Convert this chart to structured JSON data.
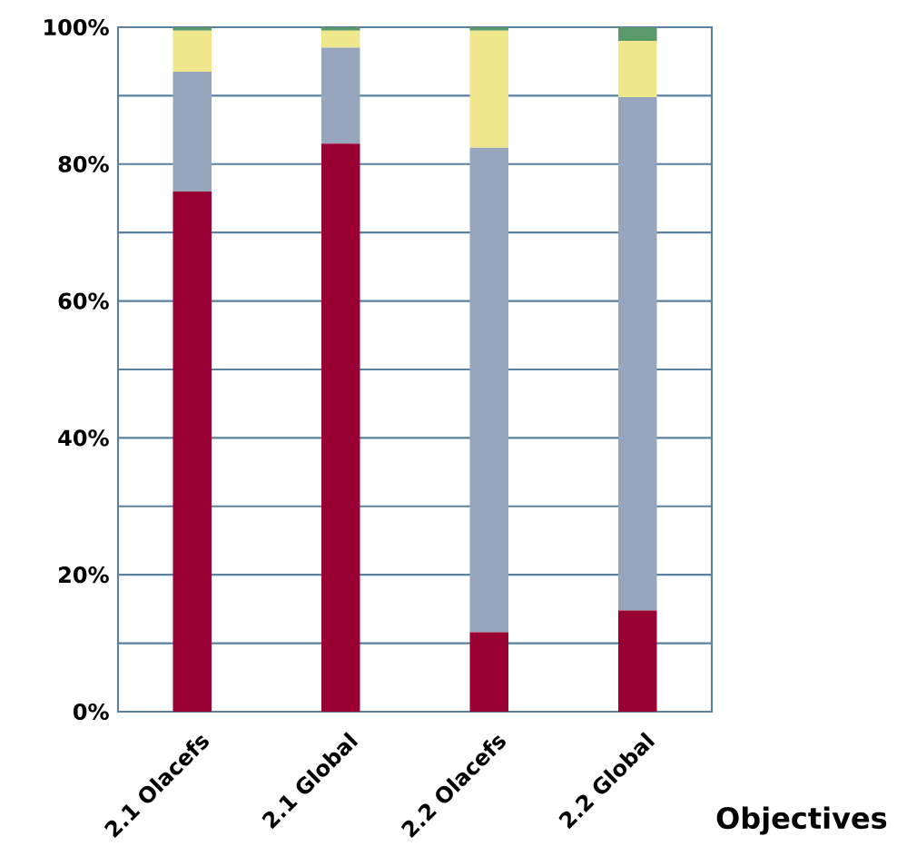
{
  "chart_data": {
    "type": "bar",
    "stacked": true,
    "xlabel": "Objectives",
    "categories": [
      "2.1 Olacefs",
      "2.1 Global",
      "2.2 Olacefs",
      "2.2 Global"
    ],
    "series": [
      {
        "color": "#990033",
        "values": [
          76,
          83,
          11.6,
          14.8
        ]
      },
      {
        "color": "#97a6bc",
        "values": [
          17.5,
          14,
          70.8,
          75
        ]
      },
      {
        "color": "#f0e68c",
        "values": [
          6,
          2.5,
          17.1,
          8.2
        ]
      },
      {
        "color": "#5a9a6a",
        "values": [
          0.5,
          0.5,
          0.5,
          2
        ]
      }
    ],
    "ylim": [
      0,
      100
    ],
    "yticks": [
      {
        "value": 0,
        "label": "0%"
      },
      {
        "value": 10,
        "label": null
      },
      {
        "value": 20,
        "label": "20%"
      },
      {
        "value": 30,
        "label": null
      },
      {
        "value": 40,
        "label": "40%"
      },
      {
        "value": 50,
        "label": null
      },
      {
        "value": 60,
        "label": "60%"
      },
      {
        "value": 70,
        "label": null
      },
      {
        "value": 80,
        "label": "80%"
      },
      {
        "value": 90,
        "label": null
      },
      {
        "value": 100,
        "label": "100%"
      }
    ],
    "grid": "y"
  }
}
